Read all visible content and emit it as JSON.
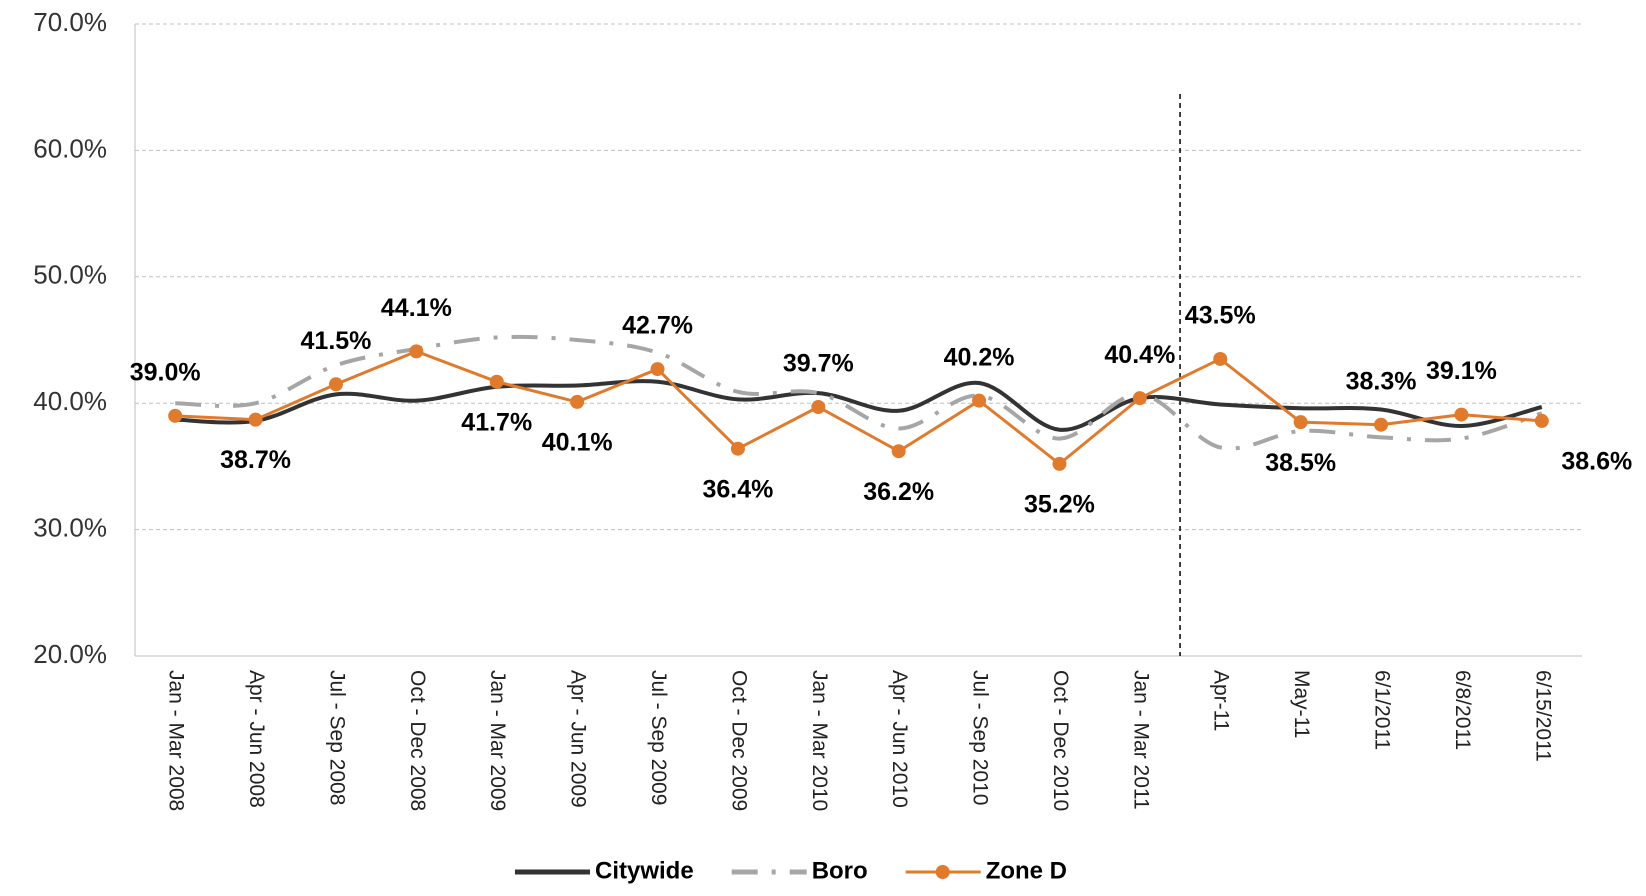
{
  "chart_data": {
    "type": "line",
    "categories": [
      "Jan - Mar 2008",
      "Apr - Jun 2008",
      "Jul - Sep 2008",
      "Oct - Dec 2008",
      "Jan - Mar 2009",
      "Apr - Jun 2009",
      "Jul - Sep 2009",
      "Oct - Dec 2009",
      "Jan - Mar 2010",
      "Apr - Jun 2010",
      "Jul - Sep 2010",
      "Oct - Dec 2010",
      "Jan - Mar 2011",
      "Apr-11",
      "May-11",
      "6/1/2011",
      "6/8/2011",
      "6/15/2011"
    ],
    "series": [
      {
        "name": "Citywide",
        "color": "#333333",
        "style": "solid",
        "smooth": true,
        "values": [
          38.7,
          38.6,
          40.7,
          40.2,
          41.3,
          41.4,
          41.7,
          40.3,
          40.8,
          39.4,
          41.6,
          37.9,
          40.4,
          39.9,
          39.6,
          39.5,
          38.2,
          39.7
        ]
      },
      {
        "name": "Boro",
        "color": "#a6a6a6",
        "style": "dashdot",
        "smooth": true,
        "values": [
          40.0,
          40.0,
          43.0,
          44.3,
          45.2,
          45.0,
          44.0,
          40.9,
          40.8,
          38.0,
          40.6,
          37.2,
          40.7,
          36.5,
          37.8,
          37.3,
          37.2,
          39.2
        ]
      },
      {
        "name": "Zone D",
        "color": "#e07b2e",
        "style": "solid",
        "smooth": false,
        "markers": true,
        "values": [
          39.0,
          38.7,
          41.5,
          44.1,
          41.7,
          40.1,
          42.7,
          36.4,
          39.7,
          36.2,
          40.2,
          35.2,
          40.4,
          43.5,
          38.5,
          38.3,
          39.1,
          38.6
        ],
        "value_labels": [
          "39.0%",
          "38.7%",
          "41.5%",
          "44.1%",
          "41.7%",
          "40.1%",
          "42.7%",
          "36.4%",
          "39.7%",
          "36.2%",
          "40.2%",
          "35.2%",
          "40.4%",
          "43.5%",
          "38.5%",
          "38.3%",
          "39.1%",
          "38.6%"
        ]
      }
    ],
    "ylim": [
      20,
      70
    ],
    "yticks": [
      {
        "value": 20,
        "label": "20.0%"
      },
      {
        "value": 30,
        "label": "30.0%"
      },
      {
        "value": 40,
        "label": "40.0%"
      },
      {
        "value": 50,
        "label": "50.0%"
      },
      {
        "value": 60,
        "label": "60.0%"
      },
      {
        "value": 70,
        "label": "70.0%"
      }
    ],
    "grid": true,
    "legend": "bottom"
  }
}
